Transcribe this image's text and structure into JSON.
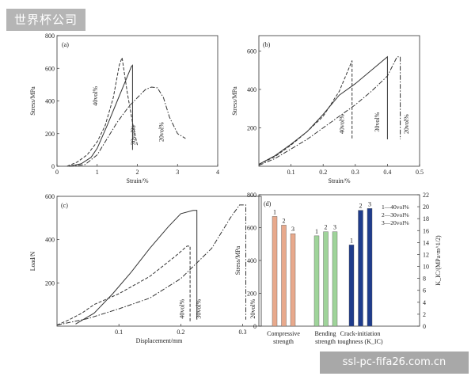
{
  "watermark": {
    "top": "世界杯公司",
    "bottom": "ssl-pc-fifa26.com.cn"
  },
  "chart_data": [
    {
      "type": "line",
      "panel_label": "(a)",
      "xlabel": "Strain/%",
      "ylabel": "Stress/MPa",
      "xlim": [
        0,
        4
      ],
      "ylim": [
        0,
        800
      ],
      "xticks": [
        0,
        1,
        2,
        3,
        4
      ],
      "yticks": [
        0,
        200,
        400,
        600,
        800
      ],
      "series": [
        {
          "name": "40vol%",
          "style": "dashed",
          "points": [
            [
              0.25,
              0
            ],
            [
              0.5,
              25
            ],
            [
              0.75,
              70
            ],
            [
              1.0,
              150
            ],
            [
              1.2,
              250
            ],
            [
              1.4,
              420
            ],
            [
              1.55,
              620
            ],
            [
              1.62,
              665
            ],
            [
              1.75,
              450
            ],
            [
              1.9,
              240
            ],
            [
              2.0,
              130
            ]
          ]
        },
        {
          "name": "30vol%",
          "style": "solid",
          "points": [
            [
              0.3,
              0
            ],
            [
              0.6,
              15
            ],
            [
              0.85,
              55
            ],
            [
              1.0,
              110
            ],
            [
              1.25,
              250
            ],
            [
              1.5,
              400
            ],
            [
              1.7,
              520
            ],
            [
              1.85,
              610
            ],
            [
              1.88,
              618
            ],
            [
              1.88,
              100
            ]
          ]
        },
        {
          "name": "20vol%",
          "style": "dashdot",
          "points": [
            [
              0.3,
              0
            ],
            [
              0.7,
              10
            ],
            [
              1.0,
              70
            ],
            [
              1.2,
              150
            ],
            [
              1.5,
              270
            ],
            [
              1.8,
              370
            ],
            [
              2.0,
              420
            ],
            [
              2.2,
              470
            ],
            [
              2.35,
              485
            ],
            [
              2.5,
              480
            ],
            [
              2.65,
              420
            ],
            [
              2.8,
              300
            ],
            [
              3.0,
              200
            ],
            [
              3.2,
              170
            ]
          ]
        }
      ],
      "annotations": [
        "40vol%",
        "30vol%",
        "20vol%"
      ]
    },
    {
      "type": "line",
      "panel_label": "(b)",
      "xlabel": "Strain/%",
      "ylabel": "Stress/MPa",
      "xlim": [
        0,
        0.5
      ],
      "ylim": [
        0,
        680
      ],
      "xticks": [
        0.1,
        0.2,
        0.3,
        0.4,
        0.5
      ],
      "yticks": [
        200,
        400,
        600
      ],
      "series": [
        {
          "name": "40vol%",
          "style": "dashed",
          "points": [
            [
              0,
              10
            ],
            [
              0.05,
              50
            ],
            [
              0.1,
              110
            ],
            [
              0.15,
              180
            ],
            [
              0.2,
              260
            ],
            [
              0.25,
              390
            ],
            [
              0.28,
              510
            ],
            [
              0.29,
              550
            ],
            [
              0.29,
              140
            ]
          ]
        },
        {
          "name": "30vol%",
          "style": "solid",
          "points": [
            [
              0,
              10
            ],
            [
              0.05,
              55
            ],
            [
              0.1,
              115
            ],
            [
              0.15,
              180
            ],
            [
              0.2,
              270
            ],
            [
              0.25,
              370
            ],
            [
              0.3,
              430
            ],
            [
              0.35,
              500
            ],
            [
              0.4,
              570
            ],
            [
              0.4,
              140
            ]
          ]
        },
        {
          "name": "20vol%",
          "style": "dashdot",
          "points": [
            [
              0,
              5
            ],
            [
              0.05,
              40
            ],
            [
              0.1,
              90
            ],
            [
              0.15,
              140
            ],
            [
              0.2,
              200
            ],
            [
              0.25,
              260
            ],
            [
              0.3,
              320
            ],
            [
              0.35,
              390
            ],
            [
              0.4,
              470
            ],
            [
              0.43,
              570
            ],
            [
              0.44,
              570
            ],
            [
              0.44,
              140
            ]
          ]
        }
      ],
      "annotations": [
        "40vol%",
        "30vol%",
        "20vol%"
      ]
    },
    {
      "type": "line",
      "panel_label": "(c)",
      "xlabel": "Displacement/mm",
      "ylabel": "Load/N",
      "xlim": [
        0,
        0.33
      ],
      "ylim": [
        0,
        600
      ],
      "xticks": [
        0.1,
        0.2,
        0.3
      ],
      "yticks": [
        200,
        400,
        600
      ],
      "series": [
        {
          "name": "40vol%",
          "style": "dashed",
          "points": [
            [
              0,
              5
            ],
            [
              0.02,
              30
            ],
            [
              0.04,
              60
            ],
            [
              0.06,
              100
            ],
            [
              0.1,
              150
            ],
            [
              0.15,
              230
            ],
            [
              0.19,
              320
            ],
            [
              0.21,
              370
            ],
            [
              0.215,
              370
            ],
            [
              0.215,
              20
            ]
          ]
        },
        {
          "name": "30vol%",
          "style": "solid",
          "points": [
            [
              0.03,
              10
            ],
            [
              0.06,
              60
            ],
            [
              0.09,
              150
            ],
            [
              0.12,
              250
            ],
            [
              0.15,
              360
            ],
            [
              0.18,
              460
            ],
            [
              0.2,
              520
            ],
            [
              0.22,
              535
            ],
            [
              0.226,
              535
            ],
            [
              0.226,
              30
            ]
          ]
        },
        {
          "name": "20vol%",
          "style": "dashdot",
          "points": [
            [
              0,
              5
            ],
            [
              0.05,
              35
            ],
            [
              0.1,
              80
            ],
            [
              0.15,
              130
            ],
            [
              0.2,
              220
            ],
            [
              0.25,
              360
            ],
            [
              0.28,
              500
            ],
            [
              0.295,
              560
            ],
            [
              0.305,
              560
            ],
            [
              0.305,
              30
            ]
          ]
        }
      ],
      "annotations": [
        "40vol%",
        "30vol%",
        "20vol%"
      ]
    },
    {
      "type": "bar",
      "panel_label": "(d)",
      "ylabel": "Stress/MPa",
      "y2label": "K_IC/(MPa·m^1/2)",
      "ylim": [
        0,
        800
      ],
      "yticks": [
        0,
        200,
        400,
        600,
        800
      ],
      "y2lim": [
        0,
        22
      ],
      "y2ticks": [
        0,
        2,
        4,
        6,
        8,
        10,
        12,
        14,
        16,
        18,
        20,
        22
      ],
      "categories": [
        "Compressive strength",
        "Bending strength",
        "Crack-initiation toughness (K_IC)"
      ],
      "groups": [
        {
          "axis": "left",
          "color": "#e8a98c",
          "bar_labels": [
            "1",
            "2",
            "3"
          ],
          "values": [
            668,
            615,
            563
          ]
        },
        {
          "axis": "left",
          "color": "#9fd49a",
          "bar_labels": [
            "1",
            "2",
            "3"
          ],
          "values": [
            550,
            575,
            575
          ]
        },
        {
          "axis": "right",
          "color": "#1f3c8c",
          "bar_labels": [
            "1",
            "2",
            "3"
          ],
          "values": [
            13.6,
            19.4,
            19.7
          ]
        }
      ],
      "legend": [
        "1—40vol%",
        "2—30vol%",
        "3—20vol%"
      ]
    }
  ]
}
